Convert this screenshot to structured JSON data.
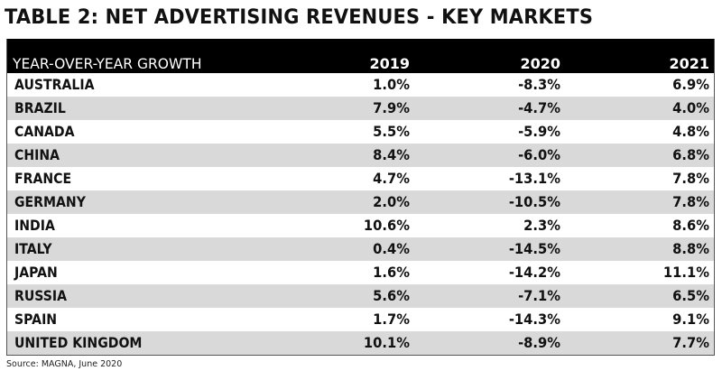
{
  "title": "TABLE 2: NET ADVERTISING REVENUES - KEY MARKETS",
  "table": {
    "header_label": "YEAR-OVER-YEAR GROWTH",
    "columns": [
      "2019",
      "2020",
      "2021"
    ],
    "rows": [
      {
        "country": "AUSTRALIA",
        "values": [
          "1.0%",
          "-8.3%",
          "6.9%"
        ]
      },
      {
        "country": "BRAZIL",
        "values": [
          "7.9%",
          "-4.7%",
          "4.0%"
        ]
      },
      {
        "country": "CANADA",
        "values": [
          "5.5%",
          "-5.9%",
          "4.8%"
        ]
      },
      {
        "country": "CHINA",
        "values": [
          "8.4%",
          "-6.0%",
          "6.8%"
        ]
      },
      {
        "country": "FRANCE",
        "values": [
          "4.7%",
          "-13.1%",
          "7.8%"
        ]
      },
      {
        "country": "GERMANY",
        "values": [
          "2.0%",
          "-10.5%",
          "7.8%"
        ]
      },
      {
        "country": "INDIA",
        "values": [
          "10.6%",
          "2.3%",
          "8.6%"
        ]
      },
      {
        "country": "ITALY",
        "values": [
          "0.4%",
          "-14.5%",
          "8.8%"
        ]
      },
      {
        "country": "JAPAN",
        "values": [
          "1.6%",
          "-14.2%",
          "11.1%"
        ]
      },
      {
        "country": "RUSSIA",
        "values": [
          "5.6%",
          "-7.1%",
          "6.5%"
        ]
      },
      {
        "country": "SPAIN",
        "values": [
          "1.7%",
          "-14.3%",
          "9.1%"
        ]
      },
      {
        "country": "UNITED KINGDOM",
        "values": [
          "10.1%",
          "-8.9%",
          "7.7%"
        ]
      }
    ]
  },
  "source": "Source: MAGNA, June 2020",
  "colors": {
    "header_bg": "#000000",
    "header_text": "#ffffff",
    "alt_row_bg": "#d9d9d9",
    "row_bg": "#ffffff",
    "text": "#111111"
  }
}
